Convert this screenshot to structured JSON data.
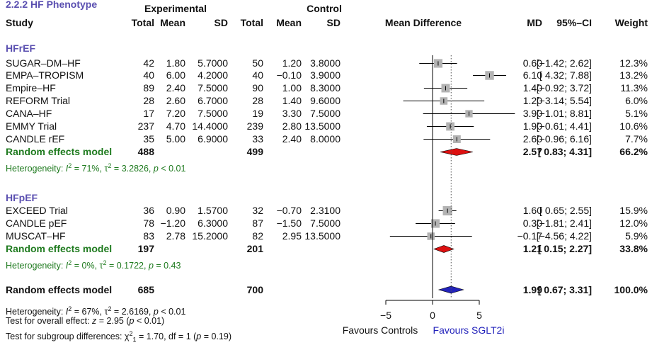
{
  "title_partial": "2.2.2 HF Phenotype",
  "headers": {
    "group_experimental": "Experimental",
    "group_control": "Control",
    "study": "Study",
    "total_e": "Total",
    "mean_e": "Mean",
    "sd_e": "SD",
    "total_c": "Total",
    "mean_c": "Mean",
    "sd_c": "SD",
    "effect": "Mean Difference",
    "md": "MD",
    "ci": "95%–CI",
    "weight": "Weight"
  },
  "colors": {
    "subgroup_heading": "#5a4fb0",
    "random_effects": "#1e7a1e",
    "subgroup_diamond": "#dd1111",
    "overall_diamond": "#2222bb",
    "box": "#b3b3b3",
    "favours_right": "#2222bb"
  },
  "groups": [
    {
      "name": "HFrEF",
      "studies": [
        {
          "study": "SUGAR–DM–HF",
          "te": "42",
          "me": "1.80",
          "sde": "5.7000",
          "tc": "50",
          "mc": "1.20",
          "sdc": "3.8000",
          "md": "0.60",
          "ci": "[−1.42; 2.62]",
          "w": "12.3%"
        },
        {
          "study": "EMPA–TROPISM",
          "te": "40",
          "me": "6.00",
          "sde": "4.2000",
          "tc": "40",
          "mc": "−0.10",
          "sdc": "3.9000",
          "md": "6.10",
          "ci": "[ 4.32; 7.88]",
          "w": "13.2%"
        },
        {
          "study": "Empire–HF",
          "te": "89",
          "me": "2.40",
          "sde": "7.5000",
          "tc": "90",
          "mc": "1.00",
          "sdc": "8.3000",
          "md": "1.40",
          "ci": "[−0.92; 3.72]",
          "w": "11.3%"
        },
        {
          "study": "REFORM Trial",
          "te": "28",
          "me": "2.60",
          "sde": "6.7000",
          "tc": "28",
          "mc": "1.40",
          "sdc": "9.6000",
          "md": "1.20",
          "ci": "[−3.14; 5.54]",
          "w": "6.0%"
        },
        {
          "study": "CANA–HF",
          "te": "17",
          "me": "7.20",
          "sde": "7.5000",
          "tc": "19",
          "mc": "3.30",
          "sdc": "7.5000",
          "md": "3.90",
          "ci": "[−1.01; 8.81]",
          "w": "5.1%"
        },
        {
          "study": "EMMY Trial",
          "te": "237",
          "me": "4.70",
          "sde": "14.4000",
          "tc": "239",
          "mc": "2.80",
          "sdc": "13.5000",
          "md": "1.90",
          "ci": "[−0.61; 4.41]",
          "w": "10.6%"
        },
        {
          "study": "CANDLE rEF",
          "te": "35",
          "me": "5.00",
          "sde": "6.9000",
          "tc": "33",
          "mc": "2.40",
          "sdc": "8.0000",
          "md": "2.60",
          "ci": "[−0.96; 6.16]",
          "w": "7.7%"
        }
      ],
      "random": {
        "label": "Random effects model",
        "te": "488",
        "tc": "499",
        "md": "2.57",
        "ci": "[ 0.83; 4.31]",
        "w": "66.2%"
      },
      "heterogeneity": {
        "prefix": "Heterogeneity: ",
        "i2_label": "I",
        "i2_value": " = 71%, τ",
        "tau2_value": " = 3.2826, ",
        "p_label": "p",
        "p_value": " < 0.01"
      }
    },
    {
      "name": "HFpEF",
      "studies": [
        {
          "study": "EXCEED Trial",
          "te": "36",
          "me": "0.90",
          "sde": "1.5700",
          "tc": "32",
          "mc": "−0.70",
          "sdc": "2.3100",
          "md": "1.60",
          "ci": "[ 0.65; 2.55]",
          "w": "15.9%"
        },
        {
          "study": "CANDLE pEF",
          "te": "78",
          "me": "−1.20",
          "sde": "6.3000",
          "tc": "87",
          "mc": "−1.50",
          "sdc": "7.5000",
          "md": "0.30",
          "ci": "[−1.81; 2.41]",
          "w": "12.0%"
        },
        {
          "study": "MUSCAT–HF",
          "te": "83",
          "me": "2.78",
          "sde": "15.2000",
          "tc": "82",
          "mc": "2.95",
          "sdc": "13.5000",
          "md": "−0.17",
          "ci": "[−4.56; 4.22]",
          "w": "5.9%"
        }
      ],
      "random": {
        "label": "Random effects model",
        "te": "197",
        "tc": "201",
        "md": "1.21",
        "ci": "[ 0.15; 2.27]",
        "w": "33.8%"
      },
      "heterogeneity": {
        "prefix": "Heterogeneity: ",
        "i2_label": "I",
        "i2_value": " = 0%, τ",
        "tau2_value": " = 0.1722, ",
        "p_label": "p",
        "p_value": " = 0.43"
      }
    }
  ],
  "overall": {
    "label": "Random effects model",
    "te": "685",
    "tc": "700",
    "md": "1.99",
    "ci": "[ 0.67; 3.31]",
    "w": "100.0%",
    "heterogeneity": {
      "prefix": "Heterogeneity: ",
      "i2_label": "I",
      "i2_value": " = 67%, τ",
      "tau2_value": " = 2.6169, ",
      "p_label": "p",
      "p_value": " < 0.01"
    },
    "test_overall": {
      "prefix": "Test for overall effect: ",
      "z_label": "z",
      "z_value": " = 2.95 (",
      "p_label": "p",
      "p_value": " < 0.01)"
    },
    "test_subgroup": {
      "prefix": "Test for subgroup differences: ",
      "chi_label": "χ",
      "chi_value": " = 1.70, df = 1 (",
      "p_label": "p",
      "p_value": " = 0.19)"
    }
  },
  "chart_data": {
    "type": "forest",
    "null_value": 0,
    "overall_effect": 1.99,
    "axis": {
      "ticks": [
        -5,
        0,
        5
      ],
      "tick_labels": [
        "−5",
        "0",
        "5"
      ],
      "xlim": [
        -6.2,
        9.3
      ]
    },
    "favours_left": "Favours Controls",
    "favours_right": "Favours SGLT2i",
    "studies": [
      {
        "study": "SUGAR–DM–HF",
        "md": 0.6,
        "lo": -1.42,
        "hi": 2.62,
        "weight": 12.3
      },
      {
        "study": "EMPA–TROPISM",
        "md": 6.1,
        "lo": 4.32,
        "hi": 7.88,
        "weight": 13.2
      },
      {
        "study": "Empire–HF",
        "md": 1.4,
        "lo": -0.92,
        "hi": 3.72,
        "weight": 11.3
      },
      {
        "study": "REFORM Trial",
        "md": 1.2,
        "lo": -3.14,
        "hi": 5.54,
        "weight": 6.0
      },
      {
        "study": "CANA–HF",
        "md": 3.9,
        "lo": -1.01,
        "hi": 8.81,
        "weight": 5.1
      },
      {
        "study": "EMMY Trial",
        "md": 1.9,
        "lo": -0.61,
        "hi": 4.41,
        "weight": 10.6
      },
      {
        "study": "CANDLE rEF",
        "md": 2.6,
        "lo": -0.96,
        "hi": 6.16,
        "weight": 7.7
      },
      {
        "study": "EXCEED Trial",
        "md": 1.6,
        "lo": 0.65,
        "hi": 2.55,
        "weight": 15.9
      },
      {
        "study": "CANDLE pEF",
        "md": 0.3,
        "lo": -1.81,
        "hi": 2.41,
        "weight": 12.0
      },
      {
        "study": "MUSCAT–HF",
        "md": -0.17,
        "lo": -4.56,
        "hi": 4.22,
        "weight": 5.9
      }
    ],
    "pooled": [
      {
        "group": "HFrEF",
        "md": 2.57,
        "lo": 0.83,
        "hi": 4.31
      },
      {
        "group": "HFpEF",
        "md": 1.21,
        "lo": 0.15,
        "hi": 2.27
      },
      {
        "group": "Overall",
        "md": 1.99,
        "lo": 0.67,
        "hi": 3.31
      }
    ]
  }
}
